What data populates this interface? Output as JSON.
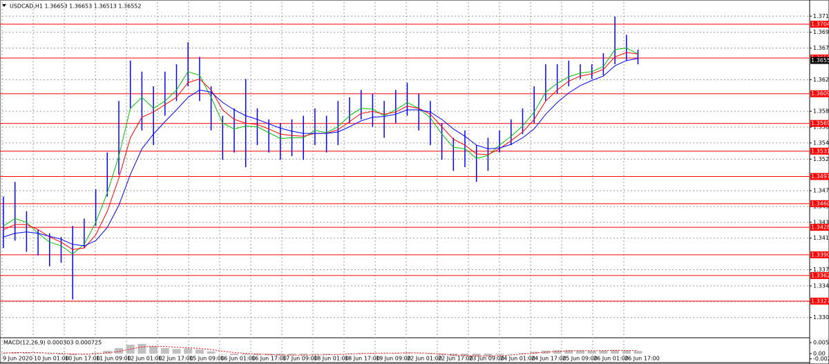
{
  "chart_data": [
    {
      "type": "ohlc",
      "title": "USDCAD,H1 1.36653 1.36653 1.36513 1.36552",
      "color": "#0000ff",
      "high": [
        1.347,
        1.349,
        1.345,
        1.3425,
        1.342,
        1.3415,
        1.343,
        1.344,
        1.348,
        1.353,
        1.36,
        1.3655,
        1.364,
        1.362,
        1.364,
        1.365,
        1.368,
        1.366,
        1.362,
        1.358,
        1.359,
        1.363,
        1.359,
        1.3575,
        1.357,
        1.3575,
        1.358,
        1.359,
        1.358,
        1.36,
        1.3605,
        1.3615,
        1.361,
        1.36,
        1.3615,
        1.3625,
        1.361,
        1.36,
        1.357,
        1.355,
        1.356,
        1.354,
        1.355,
        1.356,
        1.3575,
        1.359,
        1.362,
        1.365,
        1.365,
        1.3655,
        1.365,
        1.365,
        1.3665,
        1.3715,
        1.369,
        1.367
      ],
      "low": [
        1.34,
        1.341,
        1.3395,
        1.339,
        1.3375,
        1.338,
        1.333,
        1.34,
        1.343,
        1.347,
        1.35,
        1.359,
        1.356,
        1.354,
        1.358,
        1.36,
        1.362,
        1.36,
        1.356,
        1.352,
        1.353,
        1.351,
        1.354,
        1.353,
        1.352,
        1.3525,
        1.352,
        1.354,
        1.353,
        1.354,
        1.357,
        1.3575,
        1.3565,
        1.355,
        1.357,
        1.358,
        1.356,
        1.354,
        1.352,
        1.3505,
        1.351,
        1.349,
        1.3505,
        1.353,
        1.354,
        1.3555,
        1.357,
        1.36,
        1.361,
        1.362,
        1.363,
        1.363,
        1.3635,
        1.365,
        1.3655,
        1.365
      ],
      "series": [
        {
          "color": "#00c000",
          "values": [
            1.343,
            1.344,
            1.3435,
            1.342,
            1.3408,
            1.3403,
            1.3392,
            1.3405,
            1.3435,
            1.3475,
            1.3525,
            1.359,
            1.3605,
            1.359,
            1.36,
            1.3615,
            1.364,
            1.3635,
            1.3605,
            1.357,
            1.3562,
            1.3566,
            1.3565,
            1.3557,
            1.3549,
            1.355,
            1.355,
            1.356,
            1.3557,
            1.3565,
            1.358,
            1.359,
            1.3589,
            1.358,
            1.3588,
            1.3598,
            1.359,
            1.3577,
            1.3555,
            1.3537,
            1.3535,
            1.3522,
            1.3526,
            1.354,
            1.3552,
            1.3566,
            1.3585,
            1.3612,
            1.3624,
            1.3633,
            1.3638,
            1.364,
            1.3647,
            1.367,
            1.3672,
            1.3664
          ]
        },
        {
          "color": "#ff0000",
          "values": [
            1.3425,
            1.3432,
            1.3432,
            1.3425,
            1.3415,
            1.3408,
            1.3398,
            1.34,
            1.3418,
            1.345,
            1.3495,
            1.355,
            1.3578,
            1.3585,
            1.3595,
            1.3605,
            1.3625,
            1.363,
            1.3615,
            1.3588,
            1.3575,
            1.357,
            1.3568,
            1.3562,
            1.3555,
            1.3553,
            1.3552,
            1.3556,
            1.3556,
            1.3561,
            1.3572,
            1.3583,
            1.3586,
            1.3582,
            1.3585,
            1.3593,
            1.359,
            1.3582,
            1.3565,
            1.3548,
            1.354,
            1.3528,
            1.3527,
            1.3535,
            1.3546,
            1.3558,
            1.3575,
            1.36,
            1.3615,
            1.3627,
            1.3634,
            1.3637,
            1.3643,
            1.366,
            1.3666,
            1.3664
          ]
        },
        {
          "color": "#0000ff",
          "values": [
            1.3415,
            1.342,
            1.3422,
            1.342,
            1.3416,
            1.3412,
            1.3405,
            1.3403,
            1.341,
            1.3428,
            1.3458,
            1.35,
            1.3535,
            1.3555,
            1.3572,
            1.3588,
            1.3605,
            1.3615,
            1.3612,
            1.3598,
            1.3588,
            1.358,
            1.3575,
            1.3569,
            1.3563,
            1.3559,
            1.3556,
            1.3556,
            1.3556,
            1.3558,
            1.3565,
            1.3573,
            1.3578,
            1.3579,
            1.3582,
            1.3588,
            1.3588,
            1.3585,
            1.3575,
            1.3562,
            1.3552,
            1.354,
            1.3535,
            1.3536,
            1.3541,
            1.355,
            1.3562,
            1.3582,
            1.3598,
            1.3611,
            1.3621,
            1.3628,
            1.3634,
            1.3648,
            1.3655,
            1.3658
          ]
        }
      ],
      "ylim": [
        1.32789,
        1.37346
      ],
      "yticks": [
        1.37155,
        1.36935,
        {
          "value": 1.3672,
          "label": "1.36720"
        },
        {
          "value": 1.3629,
          "label": "1.36290"
        },
        {
          "value": 1.3586,
          "label": "1.35860"
        },
        1.35645,
        {
          "value": 1.3543,
          "label": "1.35430"
        },
        {
          "value": 1.3521,
          "label": "1.35210"
        },
        {
          "value": 1.3478,
          "label": "1.34780"
        },
        1.34565,
        {
          "value": 1.3435,
          "label": "1.34350"
        },
        1.34135,
        1.33705,
        1.33485,
        {
          "value": 1.3327,
          "label": "1.33270"
        },
        1.33055
      ],
      "levels": [
        1.37045,
        1.36585,
        1.36099,
        1.35695,
        1.35318,
        1.34973,
        1.34604,
        1.34282,
        1.33908,
        1.33626,
        1.33278
      ],
      "level_color": "#ff0000",
      "current_price": 1.36552,
      "grid": true,
      "x_labels": [
        "9 Jun 2020",
        "10 Jun 01:00",
        "10 Jun 17:00",
        "11 Jun 09:00",
        "12 Jun 01:00",
        "12 Jun 17:00",
        "15 Jun 09:00",
        "16 Jun 01:00",
        "16 Jun 17:00",
        "17 Jun 09:00",
        "18 Jun 01:00",
        "18 Jun 17:00",
        "19 Jun 09:00",
        "22 Jun 01:00",
        "22 Jun 17:00",
        "23 Jun 09:00",
        "24 Jun 01:00",
        "24 Jun 17:00",
        "25 Jun 09:00",
        "26 Jun 01:00",
        "26 Jun 17:00"
      ]
    },
    {
      "type": "bar",
      "title": "MACD(12,26,9) 0.000303 0.000725",
      "color": "#c0c0c0",
      "values": [
        0.0005,
        0.0008,
        0.0006,
        0.0002,
        -0.0003,
        -0.0005,
        -0.0008,
        -0.0004,
        0.0005,
        0.0015,
        0.003,
        0.0048,
        0.0052,
        0.004,
        0.003,
        0.0025,
        0.0028,
        0.0022,
        0.0012,
        -0.0002,
        -0.0008,
        -0.0006,
        -0.0008,
        -0.0009,
        -0.001,
        -0.0008,
        -0.0007,
        -0.0004,
        -0.0004,
        -0.0002,
        0.0002,
        0.0004,
        0.0004,
        0.0002,
        0.0004,
        0.0006,
        0.0002,
        -0.0003,
        -0.0009,
        -0.0014,
        -0.0015,
        -0.0016,
        -0.0012,
        -0.0006,
        -0.0001,
        0.0004,
        0.001,
        0.0016,
        0.0018,
        0.0019,
        0.0017,
        0.0015,
        0.0016,
        0.002,
        0.0018,
        0.0014
      ],
      "series": [
        {
          "color": "#ff0000",
          "values": [
            0.0003,
            0.0005,
            0.0006,
            0.0005,
            0.0003,
            0.0001,
            -0.0002,
            -0.0003,
            -0.0001,
            0.0004,
            0.0012,
            0.0024,
            0.0036,
            0.004,
            0.0038,
            0.0034,
            0.0031,
            0.0028,
            0.0022,
            0.0013,
            0.0006,
            0.0002,
            -0.0002,
            -0.0005,
            -0.0007,
            -0.0008,
            -0.0008,
            -0.0007,
            -0.0006,
            -0.0005,
            -0.0002,
            0.0,
            0.0002,
            0.0003,
            0.0003,
            0.0004,
            0.0004,
            0.0002,
            -0.0002,
            -0.0007,
            -0.001,
            -0.0013,
            -0.0013,
            -0.0011,
            -0.0007,
            -0.0002,
            0.0003,
            0.0008,
            0.0012,
            0.0015,
            0.0016,
            0.0016,
            0.0016,
            0.0017,
            0.0017,
            0.0016
          ]
        }
      ],
      "ylim": [
        -0.00445,
        0.00778
      ],
      "yticks": [
        0.005933,
        {
          "value": 0,
          "label": "0.00"
        },
        -0.0028
      ]
    }
  ]
}
